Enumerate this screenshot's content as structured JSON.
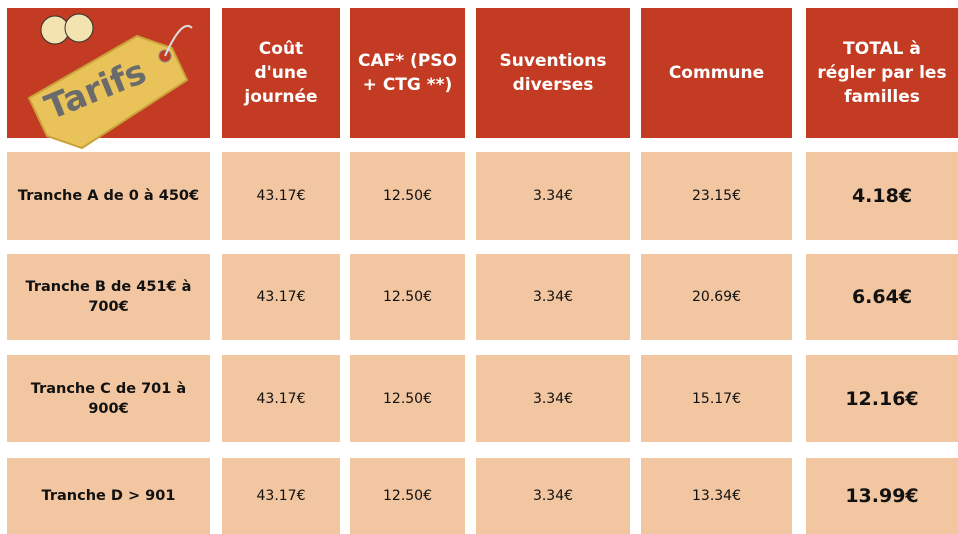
{
  "header": {
    "logo_text": "Tarifs"
  },
  "table": {
    "columns": [
      "Coût d'une journée",
      "CAF* (PSO + CTG **)",
      "Suventions diverses",
      "Commune",
      "TOTAL à régler par les familles"
    ],
    "rows": [
      [
        "Tranche A de 0 à 450€",
        "43.17€",
        "12.50€",
        "3.34€",
        "23.15€",
        "4.18€"
      ],
      [
        "Tranche B de 451€ à 700€",
        "43.17€",
        "12.50€",
        "3.34€",
        "20.69€",
        "6.64€"
      ],
      [
        "Tranche C de 701 à 900€",
        "43.17€",
        "12.50€",
        "3.34€",
        "15.17€",
        "12.16€"
      ],
      [
        "Tranche D > 901",
        "43.17€",
        "12.50€",
        "3.34€",
        "13.34€",
        "13.99€"
      ]
    ]
  }
}
